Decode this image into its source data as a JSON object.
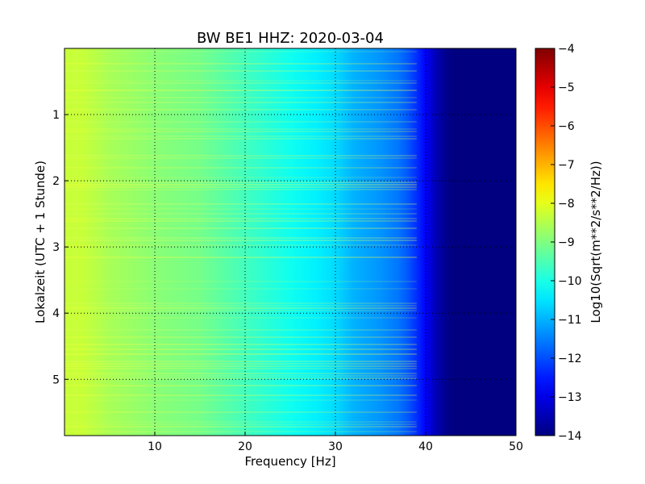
{
  "chart_data": {
    "type": "heatmap",
    "title": "BW BE1 HHZ: 2020-03-04",
    "xlabel": "Frequency [Hz]",
    "ylabel": "Lokalzeit (UTC + 1 Stunde)",
    "xlim": [
      0,
      50
    ],
    "ylim": [
      5.85,
      0
    ],
    "x_ticks": [
      10,
      20,
      30,
      40,
      50
    ],
    "x_tick_labels": [
      "10",
      "20",
      "30",
      "40",
      "50"
    ],
    "y_ticks": [
      1,
      2,
      3,
      4,
      5
    ],
    "y_tick_labels": [
      "1",
      "2",
      "3",
      "4",
      "5"
    ],
    "grid": true,
    "colormap": "jet",
    "colorbar": {
      "label": "Log10(Sqrt(m**2/s**2/Hz))",
      "range": [
        -14,
        -4
      ],
      "ticks": [
        -4,
        -5,
        -6,
        -7,
        -8,
        -9,
        -10,
        -11,
        -12,
        -13,
        -14
      ],
      "tick_labels": [
        "−4",
        "−5",
        "−6",
        "−7",
        "−8",
        "−9",
        "−10",
        "−11",
        "−12",
        "−13",
        "−14"
      ]
    },
    "frequency_profile": {
      "frequency_hz": [
        0,
        2,
        5,
        10,
        15,
        20,
        25,
        28,
        30,
        31,
        32,
        35,
        37,
        38,
        39,
        40,
        41,
        42,
        43,
        44,
        45,
        50
      ],
      "log10_psd": [
        -8.3,
        -8.3,
        -8.6,
        -8.9,
        -9.1,
        -9.6,
        -10.1,
        -10.4,
        -10.6,
        -10.8,
        -11.0,
        -11.3,
        -11.6,
        -11.9,
        -12.3,
        -12.8,
        -13.4,
        -13.8,
        -14.0,
        -14.0,
        -14.0,
        -14.0
      ]
    },
    "notes_visible": []
  }
}
